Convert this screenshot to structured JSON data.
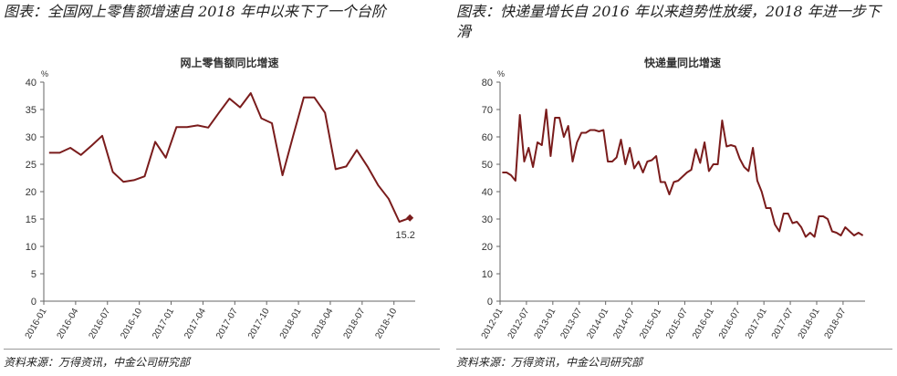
{
  "left": {
    "caption": "图表：全国网上零售额增速自 2018 年中以来下了一个台阶",
    "source": "资料来源：万得资讯，中金公司研究部"
  },
  "right": {
    "caption": "图表：快递量增长自 2016 年以来趋势性放缓，2018 年进一步下滑",
    "source": "资料来源：万得资讯，中金公司研究部"
  },
  "colors": {
    "line": "#7a1c1c"
  },
  "chart_data": [
    {
      "type": "line",
      "title": "网上零售额同比增速",
      "ylabel": "%",
      "ylim": [
        0,
        40
      ],
      "yticks": [
        0,
        5,
        10,
        15,
        20,
        25,
        30,
        35,
        40
      ],
      "start": "2016-01",
      "xtick_labels": [
        "2016-01",
        "2016-04",
        "2016-07",
        "2016-10",
        "2017-01",
        "2017-04",
        "2017-07",
        "2017-10",
        "2018-01",
        "2018-04",
        "2018-07",
        "2018-10"
      ],
      "values": [
        27.1,
        27.1,
        28,
        26.7,
        28.4,
        30.2,
        23.6,
        21.8,
        22.1,
        22.8,
        29.1,
        26.2,
        31.8,
        31.8,
        32.1,
        31.7,
        34.4,
        37,
        35.4,
        38,
        33.4,
        32.5,
        23,
        30.2,
        37.2,
        37.2,
        34.4,
        24.1,
        24.6,
        27.6,
        24.6,
        21.2,
        18.7,
        14.5,
        15.2
      ],
      "annotation": "15.2",
      "grid": false
    },
    {
      "type": "line",
      "title": "快递量同比增速",
      "ylabel": "%",
      "ylim": [
        0,
        80
      ],
      "yticks": [
        0,
        10,
        20,
        30,
        40,
        50,
        60,
        70,
        80
      ],
      "start": "2012-01",
      "xtick_labels": [
        "2012-01",
        "2012-07",
        "2013-01",
        "2013-07",
        "2014-01",
        "2014-07",
        "2015-01",
        "2015-07",
        "2016-01",
        "2016-07",
        "2017-01",
        "2017-07",
        "2018-01",
        "2018-07"
      ],
      "values": [
        47,
        47,
        46,
        44,
        68,
        51,
        56,
        49,
        58,
        57,
        70,
        53,
        67,
        67,
        60,
        64,
        51,
        58,
        61.5,
        61.5,
        62.5,
        62.5,
        62,
        62.5,
        51,
        51,
        52.5,
        59,
        50,
        56,
        48.5,
        51,
        47,
        51,
        51.5,
        53,
        43.5,
        43.5,
        39,
        43.5,
        44,
        45.5,
        47,
        48,
        55.5,
        50.5,
        58,
        47.5,
        50,
        50,
        66,
        56.5,
        57,
        56.5,
        52,
        49,
        47.5,
        56,
        44,
        40,
        34,
        34,
        28,
        25.5,
        32,
        32,
        28.5,
        29,
        27,
        23.5,
        25,
        23.5,
        31,
        31,
        30,
        25.5,
        25,
        24,
        27,
        25.5,
        24,
        25,
        24
      ],
      "grid": false
    }
  ]
}
